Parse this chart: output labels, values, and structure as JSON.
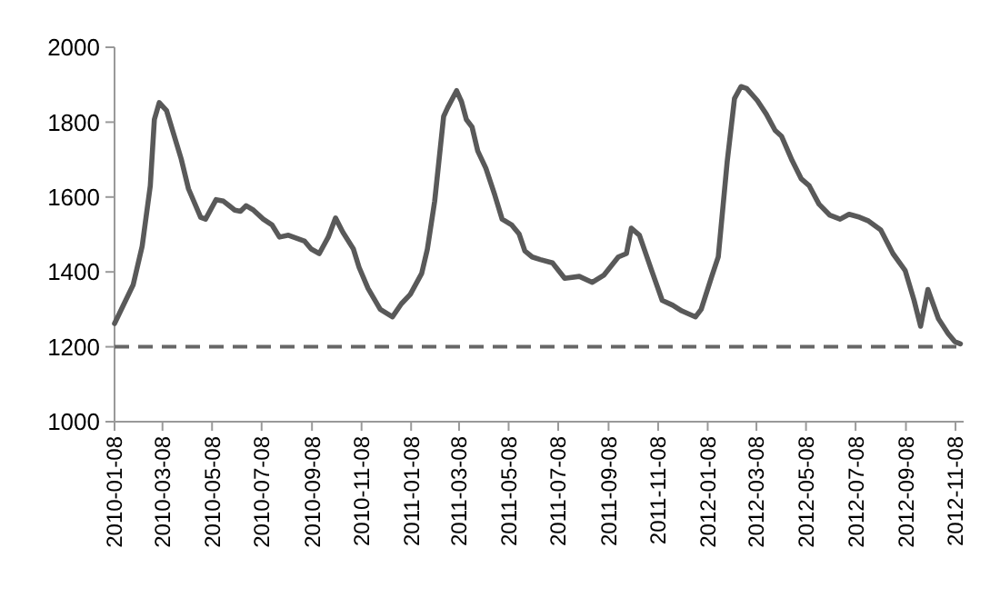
{
  "chart_data": {
    "type": "line",
    "xlim": [
      "2010-01-08",
      "2012-11-18"
    ],
    "ylim": [
      1000,
      2000
    ],
    "yticks": [
      1000,
      1200,
      1400,
      1600,
      1800,
      2000
    ],
    "xticks": [
      "2010-01-08",
      "2010-03-08",
      "2010-05-08",
      "2010-07-08",
      "2010-09-08",
      "2010-11-08",
      "2011-01-08",
      "2011-03-08",
      "2011-05-08",
      "2011-07-08",
      "2011-09-08",
      "2011-11-08",
      "2012-01-08",
      "2012-03-08",
      "2012-05-08",
      "2012-07-08",
      "2012-09-08",
      "2012-11-08"
    ],
    "grid": false,
    "marker": "none",
    "line_style": "solid",
    "ref_lines": [
      {
        "axis": "y",
        "value": 1200,
        "color": "#666666",
        "line_style": "dashed"
      }
    ],
    "series": [
      {
        "color": "#595959",
        "x": [
          "2010-01-08",
          "2010-01-31",
          "2010-02-11",
          "2010-02-21",
          "2010-02-26",
          "2010-03-04",
          "2010-03-13",
          "2010-03-31",
          "2010-04-09",
          "2010-04-24",
          "2010-04-30",
          "2010-05-13",
          "2010-05-22",
          "2010-06-05",
          "2010-06-12",
          "2010-06-19",
          "2010-06-28",
          "2010-07-10",
          "2010-07-21",
          "2010-07-30",
          "2010-08-10",
          "2010-08-30",
          "2010-09-07",
          "2010-09-17",
          "2010-09-28",
          "2010-10-07",
          "2010-10-16",
          "2010-10-29",
          "2010-11-05",
          "2010-11-16",
          "2010-12-01",
          "2010-12-16",
          "2010-12-27",
          "2011-01-07",
          "2011-01-21",
          "2011-01-28",
          "2011-02-06",
          "2011-02-17",
          "2011-02-22",
          "2011-03-05",
          "2011-03-11",
          "2011-03-17",
          "2011-03-24",
          "2011-03-31",
          "2011-04-10",
          "2011-04-21",
          "2011-04-30",
          "2011-05-12",
          "2011-05-21",
          "2011-05-28",
          "2011-06-06",
          "2011-06-16",
          "2011-07-01",
          "2011-07-16",
          "2011-08-03",
          "2011-08-19",
          "2011-09-02",
          "2011-09-20",
          "2011-09-30",
          "2011-10-06",
          "2011-10-16",
          "2011-10-31",
          "2011-11-13",
          "2011-11-26",
          "2011-12-07",
          "2011-12-24",
          "2011-12-31",
          "2012-01-13",
          "2012-01-21",
          "2012-02-01",
          "2012-02-10",
          "2012-02-18",
          "2012-02-25",
          "2012-03-09",
          "2012-03-20",
          "2012-03-31",
          "2012-04-08",
          "2012-04-21",
          "2012-05-02",
          "2012-05-12",
          "2012-05-24",
          "2012-06-06",
          "2012-06-19",
          "2012-06-30",
          "2012-07-13",
          "2012-07-24",
          "2012-08-08",
          "2012-08-23",
          "2012-09-07",
          "2012-09-18",
          "2012-09-26",
          "2012-10-05",
          "2012-10-18",
          "2012-10-30",
          "2012-11-07",
          "2012-11-14"
        ],
        "values": [
          1262,
          1366,
          1469,
          1630,
          1807,
          1852,
          1831,
          1702,
          1622,
          1546,
          1541,
          1593,
          1589,
          1565,
          1562,
          1577,
          1565,
          1541,
          1525,
          1493,
          1498,
          1482,
          1461,
          1449,
          1493,
          1544,
          1506,
          1461,
          1412,
          1356,
          1300,
          1280,
          1315,
          1340,
          1396,
          1461,
          1589,
          1815,
          1839,
          1884,
          1855,
          1807,
          1787,
          1723,
          1677,
          1605,
          1541,
          1525,
          1501,
          1456,
          1440,
          1433,
          1424,
          1383,
          1388,
          1372,
          1391,
          1440,
          1449,
          1517,
          1498,
          1404,
          1324,
          1311,
          1296,
          1280,
          1300,
          1388,
          1440,
          1694,
          1863,
          1895,
          1890,
          1858,
          1822,
          1778,
          1762,
          1697,
          1649,
          1630,
          1581,
          1552,
          1541,
          1554,
          1546,
          1536,
          1512,
          1449,
          1404,
          1324,
          1255,
          1353,
          1275,
          1235,
          1214,
          1208
        ]
      }
    ]
  }
}
